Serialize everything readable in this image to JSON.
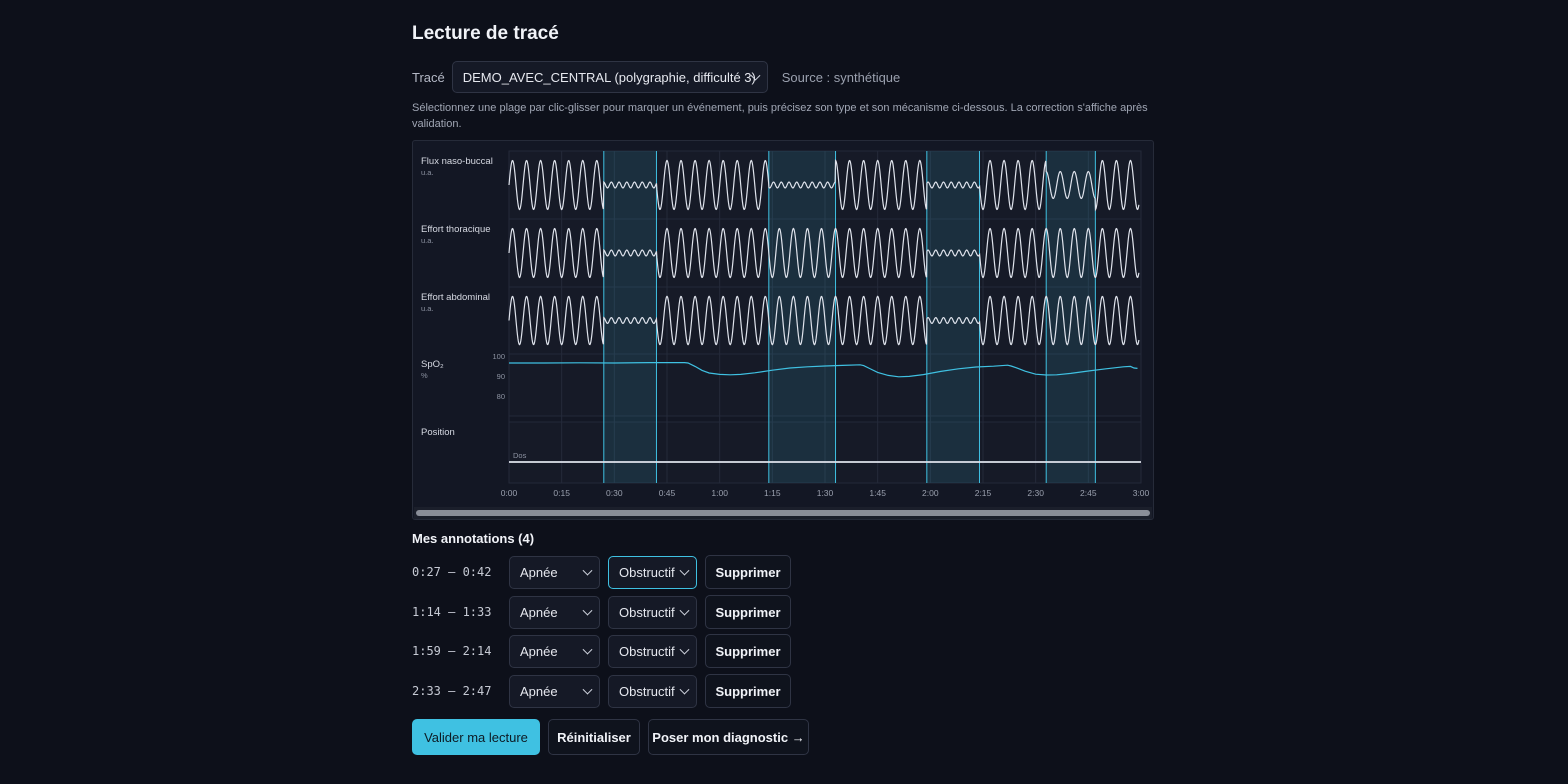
{
  "page": {
    "title": "Lecture de tracé",
    "trace_label": "Tracé",
    "trace_selected": "DEMO_AVEC_CENTRAL (polygraphie, difficulté 3)",
    "source": "Source : synthétique",
    "instructions": "Sélectionnez une plage par clic-glisser pour marquer un événement, puis précisez son type et son mécanisme ci-dessous. La correction s'affiche après validation."
  },
  "chart_data": {
    "type": "line",
    "x_unit": "seconds",
    "x_range": [
      0,
      180
    ],
    "x_ticks": [
      "0:00",
      "0:15",
      "0:30",
      "0:45",
      "1:00",
      "1:15",
      "1:30",
      "1:45",
      "2:00",
      "2:15",
      "2:30",
      "2:45",
      "3:00"
    ],
    "grid": true,
    "channels": [
      {
        "label": "Flux naso-buccal",
        "unit": "u.a."
      },
      {
        "label": "Effort thoracique",
        "unit": "u.a."
      },
      {
        "label": "Effort abdominal",
        "unit": "u.a."
      },
      {
        "label": "SpO₂",
        "unit": "%",
        "y_ticks": [
          "100",
          "90",
          "80"
        ]
      },
      {
        "label": "Position",
        "unit": "",
        "value_label": "Dos"
      }
    ],
    "event_regions_s": [
      [
        27,
        42
      ],
      [
        74,
        93
      ],
      [
        119,
        134
      ],
      [
        153,
        167
      ]
    ],
    "spo2_points": [
      [
        0,
        96.5
      ],
      [
        10,
        96.5
      ],
      [
        20,
        96.6
      ],
      [
        30,
        96.5
      ],
      [
        40,
        96.7
      ],
      [
        50,
        96.7
      ],
      [
        51,
        96.5
      ],
      [
        53,
        94.8
      ],
      [
        55,
        92.8
      ],
      [
        57,
        91.5
      ],
      [
        60,
        90.8
      ],
      [
        63,
        90.6
      ],
      [
        66,
        90.8
      ],
      [
        70,
        91.6
      ],
      [
        75,
        92.9
      ],
      [
        80,
        94.0
      ],
      [
        85,
        94.6
      ],
      [
        90,
        95.0
      ],
      [
        95,
        95.3
      ],
      [
        100,
        95.6
      ],
      [
        101,
        95.2
      ],
      [
        103,
        93.5
      ],
      [
        105,
        91.8
      ],
      [
        108,
        90.3
      ],
      [
        111,
        89.6
      ],
      [
        114,
        89.8
      ],
      [
        118,
        90.7
      ],
      [
        123,
        92.3
      ],
      [
        128,
        93.6
      ],
      [
        133,
        94.5
      ],
      [
        138,
        94.9
      ],
      [
        142,
        95.4
      ],
      [
        143,
        95.0
      ],
      [
        145,
        93.8
      ],
      [
        147,
        92.4
      ],
      [
        150,
        90.9
      ],
      [
        153,
        90.5
      ],
      [
        156,
        90.6
      ],
      [
        160,
        91.3
      ],
      [
        165,
        92.5
      ],
      [
        170,
        93.6
      ],
      [
        175,
        94.6
      ],
      [
        177,
        94.8
      ],
      [
        178,
        94.0
      ],
      [
        179,
        93.8
      ]
    ]
  },
  "annotations": {
    "title": "Mes annotations (4)",
    "items": [
      {
        "range": "0:27 – 0:42",
        "type": "Apnée",
        "mechanism": "Obstructif",
        "delete": "Supprimer"
      },
      {
        "range": "1:14 – 1:33",
        "type": "Apnée",
        "mechanism": "Obstructif",
        "delete": "Supprimer"
      },
      {
        "range": "1:59 – 2:14",
        "type": "Apnée",
        "mechanism": "Obstructif",
        "delete": "Supprimer"
      },
      {
        "range": "2:33 – 2:47",
        "type": "Apnée",
        "mechanism": "Obstructif",
        "delete": "Supprimer"
      }
    ]
  },
  "actions": {
    "validate": "Valider ma lecture",
    "reset": "Réinitialiser",
    "diagnose": "Poser mon diagnostic →"
  },
  "colors": {
    "accent": "#3fc1e2",
    "signal": "#dfe3ec",
    "spo2": "#3fc1e2",
    "background": "#0d101a"
  }
}
